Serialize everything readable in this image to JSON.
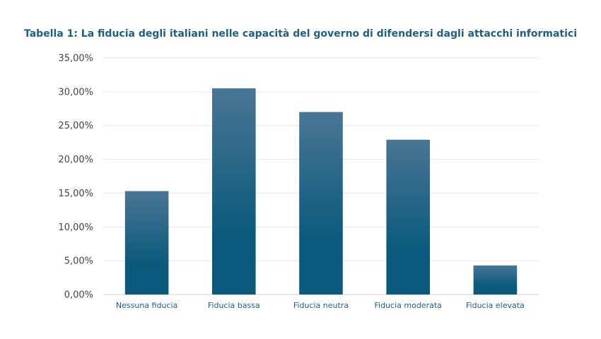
{
  "chart_data": {
    "type": "bar",
    "title": "Tabella 1: La fiducia degli italiani nelle capacità del governo di difendersi dagli attacchi informatici",
    "xlabel": "",
    "ylabel": "",
    "categories": [
      "Nessuna fiducia",
      "Fiducia bassa",
      "Fiducia neutra",
      "Fiducia moderata",
      "Fiducia elevata"
    ],
    "values": [
      15.3,
      30.5,
      27.0,
      22.9,
      4.3
    ],
    "ylim": [
      0,
      35
    ],
    "yticks": [
      0,
      5,
      10,
      15,
      20,
      25,
      30,
      35
    ],
    "ytick_labels": [
      "0,00%",
      "5,00%",
      "10,00%",
      "15,00%",
      "20,00%",
      "25,00%",
      "30,00%",
      "35,00%"
    ],
    "grid": true,
    "colors": {
      "bar_top": "#4a7594",
      "bar_bottom": "#0b5a7d",
      "title": "#1f5f7f"
    }
  }
}
